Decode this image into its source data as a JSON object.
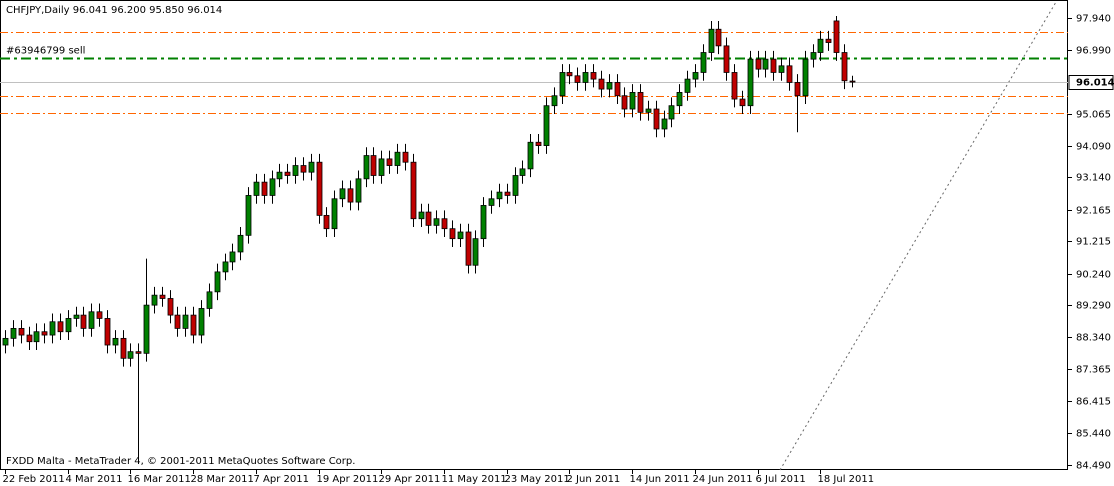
{
  "chart_data": {
    "type": "candlestick",
    "title": "CHFJPY,Daily  96.041 96.200 95.850 96.014",
    "footer": "FXDD Malta - MetaTrader 4, © 2001-2011 MetaQuotes Software Corp.",
    "up_color": "#008000",
    "down_color": "#c00000",
    "level_color": "#ff6600",
    "order_color": "#008000",
    "ylim": [
      84.34,
      98.48
    ],
    "yticks": [
      {
        "value": 97.94,
        "label": "97.940"
      },
      {
        "value": 96.99,
        "label": "96.990"
      },
      95.065,
      {
        "value": 94.09,
        "label": "94.090"
      },
      {
        "value": 93.14,
        "label": "93.140"
      },
      92.165,
      91.215,
      {
        "value": 90.24,
        "label": "90.240"
      },
      {
        "value": 89.29,
        "label": "89.290"
      },
      {
        "value": 88.34,
        "label": "88.340"
      },
      87.365,
      86.415,
      {
        "value": 85.44,
        "label": "85.440"
      },
      {
        "value": 84.49,
        "label": "84.490"
      }
    ],
    "xticks": [
      {
        "value": 0,
        "label": "22 Feb 2011"
      },
      {
        "value": 8,
        "label": "4 Mar 2011"
      },
      {
        "value": 16,
        "label": "16 Mar 2011"
      },
      {
        "value": 24,
        "label": "28 Mar 2011"
      },
      {
        "value": 32,
        "label": "7 Apr 2011"
      },
      {
        "value": 40,
        "label": "19 Apr 2011"
      },
      {
        "value": 48,
        "label": "29 Apr 2011"
      },
      {
        "value": 56,
        "label": "11 May 2011"
      },
      {
        "value": 64,
        "label": "23 May 2011"
      },
      {
        "value": 72,
        "label": "2 Jun 2011"
      },
      {
        "value": 80,
        "label": "14 Jun 2011"
      },
      {
        "value": 88,
        "label": "24 Jun 2011"
      },
      {
        "value": 96,
        "label": "6 Jul 2011"
      },
      {
        "value": 104,
        "label": "18 Jul 2011"
      }
    ],
    "bid": 96.014,
    "levels": [
      97.52,
      95.59,
      95.08
    ],
    "order": {
      "label": "#63946799 sell",
      "value": 96.74
    },
    "ohlc": [
      [
        88.1,
        88.55,
        87.85,
        88.3
      ],
      [
        88.3,
        88.85,
        88.05,
        88.6
      ],
      [
        88.6,
        88.85,
        88.15,
        88.4
      ],
      [
        88.4,
        88.65,
        87.95,
        88.2
      ],
      [
        88.2,
        88.75,
        87.95,
        88.5
      ],
      [
        88.5,
        88.75,
        88.15,
        88.4
      ],
      [
        88.4,
        89.05,
        88.15,
        88.8
      ],
      [
        88.8,
        89.05,
        88.25,
        88.5
      ],
      [
        88.5,
        89.15,
        88.25,
        88.9
      ],
      [
        88.9,
        89.25,
        88.65,
        89.0
      ],
      [
        89.0,
        89.25,
        88.35,
        88.6
      ],
      [
        88.6,
        89.35,
        88.35,
        89.1
      ],
      [
        89.1,
        89.35,
        88.65,
        88.9
      ],
      [
        88.9,
        89.15,
        87.85,
        88.1
      ],
      [
        88.1,
        88.55,
        87.85,
        88.3
      ],
      [
        88.3,
        88.55,
        87.45,
        87.7
      ],
      [
        87.7,
        88.15,
        87.45,
        87.9
      ],
      [
        87.9,
        88.15,
        84.52,
        87.85
      ],
      [
        87.85,
        90.7,
        87.6,
        89.3
      ],
      [
        89.3,
        89.85,
        89.05,
        89.6
      ],
      [
        89.6,
        89.85,
        89.25,
        89.5
      ],
      [
        89.5,
        89.75,
        88.75,
        89.0
      ],
      [
        89.0,
        89.25,
        88.35,
        88.6
      ],
      [
        88.6,
        89.25,
        88.35,
        89.0
      ],
      [
        89.0,
        89.25,
        88.15,
        88.4
      ],
      [
        88.4,
        89.45,
        88.15,
        89.2
      ],
      [
        89.2,
        89.95,
        88.95,
        89.7
      ],
      [
        89.7,
        90.55,
        89.45,
        90.3
      ],
      [
        90.3,
        90.85,
        90.05,
        90.6
      ],
      [
        90.6,
        91.15,
        90.35,
        90.9
      ],
      [
        90.9,
        91.65,
        90.65,
        91.4
      ],
      [
        91.4,
        92.85,
        91.15,
        92.6
      ],
      [
        92.6,
        93.25,
        92.35,
        93.0
      ],
      [
        93.0,
        93.25,
        92.35,
        92.6
      ],
      [
        92.6,
        93.35,
        92.35,
        93.1
      ],
      [
        93.1,
        93.55,
        92.85,
        93.3
      ],
      [
        93.3,
        93.55,
        92.95,
        93.2
      ],
      [
        93.2,
        93.75,
        92.95,
        93.5
      ],
      [
        93.5,
        93.75,
        93.05,
        93.3
      ],
      [
        93.3,
        93.85,
        93.05,
        93.6
      ],
      [
        93.6,
        93.85,
        91.75,
        92.0
      ],
      [
        92.0,
        92.25,
        91.35,
        91.6
      ],
      [
        91.6,
        92.75,
        91.35,
        92.5
      ],
      [
        92.5,
        93.05,
        92.25,
        92.8
      ],
      [
        92.8,
        93.05,
        92.15,
        92.4
      ],
      [
        92.4,
        93.35,
        92.15,
        93.1
      ],
      [
        93.1,
        94.05,
        92.85,
        93.8
      ],
      [
        93.8,
        94.05,
        92.95,
        93.2
      ],
      [
        93.2,
        93.95,
        92.95,
        93.7
      ],
      [
        93.7,
        93.95,
        93.25,
        93.5
      ],
      [
        93.5,
        94.15,
        93.25,
        93.9
      ],
      [
        93.9,
        94.15,
        93.35,
        93.6
      ],
      [
        93.6,
        93.85,
        91.65,
        91.9
      ],
      [
        91.9,
        92.35,
        91.65,
        92.1
      ],
      [
        92.1,
        92.35,
        91.45,
        91.7
      ],
      [
        91.7,
        92.15,
        91.45,
        91.9
      ],
      [
        91.9,
        92.15,
        91.35,
        91.6
      ],
      [
        91.6,
        91.85,
        91.05,
        91.3
      ],
      [
        91.3,
        91.75,
        91.05,
        91.5
      ],
      [
        91.5,
        91.75,
        90.25,
        90.5
      ],
      [
        90.5,
        91.55,
        90.25,
        91.3
      ],
      [
        91.3,
        92.55,
        91.05,
        92.3
      ],
      [
        92.3,
        92.75,
        92.05,
        92.5
      ],
      [
        92.5,
        92.95,
        92.25,
        92.7
      ],
      [
        92.7,
        92.95,
        92.35,
        92.6
      ],
      [
        92.6,
        93.45,
        92.35,
        93.2
      ],
      [
        93.2,
        93.65,
        92.95,
        93.4
      ],
      [
        93.4,
        94.45,
        93.15,
        94.2
      ],
      [
        94.2,
        94.45,
        93.85,
        94.1
      ],
      [
        94.1,
        95.55,
        93.85,
        95.3
      ],
      [
        95.3,
        95.85,
        95.05,
        95.6
      ],
      [
        95.6,
        96.55,
        95.35,
        96.3
      ],
      [
        96.3,
        96.55,
        95.95,
        96.2
      ],
      [
        96.2,
        96.45,
        95.75,
        96.0
      ],
      [
        96.0,
        96.55,
        95.75,
        96.3
      ],
      [
        96.3,
        96.55,
        95.85,
        96.1
      ],
      [
        96.1,
        96.35,
        95.55,
        95.8
      ],
      [
        95.8,
        96.25,
        95.55,
        96.0
      ],
      [
        96.0,
        96.25,
        95.35,
        95.6
      ],
      [
        95.6,
        95.85,
        94.95,
        95.2
      ],
      [
        95.2,
        95.95,
        94.95,
        95.7
      ],
      [
        95.7,
        95.95,
        94.85,
        95.1
      ],
      [
        95.1,
        95.45,
        94.85,
        95.2
      ],
      [
        95.2,
        95.45,
        94.35,
        94.6
      ],
      [
        94.6,
        95.15,
        94.35,
        94.9
      ],
      [
        94.9,
        95.55,
        94.65,
        95.3
      ],
      [
        95.3,
        95.95,
        95.05,
        95.7
      ],
      [
        95.7,
        96.35,
        95.45,
        96.1
      ],
      [
        96.1,
        96.55,
        95.85,
        96.3
      ],
      [
        96.3,
        97.15,
        96.05,
        96.9
      ],
      [
        96.9,
        97.85,
        96.65,
        97.6
      ],
      [
        97.6,
        97.85,
        96.85,
        97.1
      ],
      [
        97.1,
        97.35,
        96.05,
        96.3
      ],
      [
        96.3,
        96.55,
        95.25,
        95.5
      ],
      [
        95.5,
        95.75,
        95.05,
        95.3
      ],
      [
        95.3,
        96.95,
        95.05,
        96.7
      ],
      [
        96.7,
        96.95,
        96.15,
        96.4
      ],
      [
        96.4,
        96.95,
        96.15,
        96.7
      ],
      [
        96.7,
        96.95,
        96.05,
        96.3
      ],
      [
        96.3,
        96.75,
        96.05,
        96.5
      ],
      [
        96.5,
        96.75,
        95.75,
        96.0
      ],
      [
        96.0,
        96.25,
        94.5,
        95.6
      ],
      [
        95.6,
        96.95,
        95.35,
        96.7
      ],
      [
        96.7,
        97.15,
        96.45,
        96.9
      ],
      [
        96.9,
        97.55,
        96.65,
        97.3
      ],
      [
        97.3,
        97.55,
        96.95,
        97.2
      ],
      [
        97.85,
        98.0,
        96.65,
        96.9
      ],
      [
        96.9,
        97.15,
        95.8,
        96.05
      ],
      [
        96.041,
        96.2,
        95.85,
        96.014
      ]
    ]
  }
}
